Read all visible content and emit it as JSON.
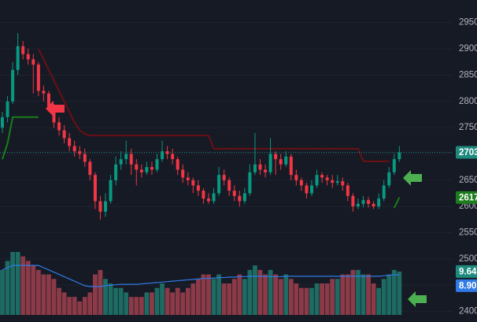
{
  "chart_data": {
    "type": "candlestick",
    "ylim": [
      2380,
      2993
    ],
    "yticks": [
      2400,
      2450,
      2500,
      2550,
      2600,
      2650,
      2700,
      2750,
      2800,
      2850,
      2900,
      2950
    ],
    "grid": true,
    "up_color": "#089981",
    "down_color": "#f23645",
    "ohlc": [
      [
        2750,
        2780,
        2740,
        2770
      ],
      [
        2770,
        2810,
        2760,
        2800
      ],
      [
        2800,
        2875,
        2795,
        2860
      ],
      [
        2860,
        2930,
        2850,
        2905
      ],
      [
        2905,
        2915,
        2880,
        2890
      ],
      [
        2890,
        2900,
        2870,
        2880
      ],
      [
        2880,
        2890,
        2815,
        2870
      ],
      [
        2870,
        2875,
        2810,
        2820
      ],
      [
        2820,
        2830,
        2800,
        2815
      ],
      [
        2815,
        2820,
        2780,
        2790
      ],
      [
        2790,
        2795,
        2750,
        2760
      ],
      [
        2760,
        2770,
        2735,
        2745
      ],
      [
        2745,
        2755,
        2720,
        2730
      ],
      [
        2730,
        2740,
        2705,
        2715
      ],
      [
        2715,
        2725,
        2695,
        2705
      ],
      [
        2705,
        2715,
        2690,
        2700
      ],
      [
        2700,
        2710,
        2675,
        2685
      ],
      [
        2685,
        2690,
        2650,
        2660
      ],
      [
        2660,
        2665,
        2595,
        2610
      ],
      [
        2610,
        2620,
        2575,
        2590
      ],
      [
        2590,
        2625,
        2580,
        2610
      ],
      [
        2610,
        2660,
        2605,
        2650
      ],
      [
        2650,
        2695,
        2640,
        2680
      ],
      [
        2680,
        2705,
        2670,
        2690
      ],
      [
        2690,
        2725,
        2680,
        2700
      ],
      [
        2700,
        2710,
        2660,
        2680
      ],
      [
        2680,
        2690,
        2640,
        2670
      ],
      [
        2670,
        2680,
        2655,
        2665
      ],
      [
        2665,
        2685,
        2660,
        2675
      ],
      [
        2675,
        2685,
        2660,
        2670
      ],
      [
        2670,
        2700,
        2665,
        2690
      ],
      [
        2690,
        2725,
        2685,
        2705
      ],
      [
        2705,
        2715,
        2690,
        2700
      ],
      [
        2700,
        2710,
        2680,
        2690
      ],
      [
        2690,
        2695,
        2660,
        2670
      ],
      [
        2670,
        2680,
        2645,
        2655
      ],
      [
        2655,
        2665,
        2640,
        2650
      ],
      [
        2650,
        2655,
        2625,
        2640
      ],
      [
        2640,
        2650,
        2620,
        2630
      ],
      [
        2630,
        2635,
        2605,
        2615
      ],
      [
        2615,
        2625,
        2605,
        2610
      ],
      [
        2610,
        2635,
        2605,
        2625
      ],
      [
        2625,
        2675,
        2620,
        2660
      ],
      [
        2660,
        2670,
        2640,
        2650
      ],
      [
        2650,
        2655,
        2620,
        2630
      ],
      [
        2630,
        2640,
        2610,
        2620
      ],
      [
        2620,
        2630,
        2600,
        2610
      ],
      [
        2610,
        2635,
        2605,
        2625
      ],
      [
        2625,
        2680,
        2620,
        2665
      ],
      [
        2665,
        2740,
        2660,
        2680
      ],
      [
        2680,
        2690,
        2660,
        2670
      ],
      [
        2670,
        2680,
        2655,
        2665
      ],
      [
        2665,
        2730,
        2660,
        2700
      ],
      [
        2700,
        2705,
        2660,
        2690
      ],
      [
        2690,
        2700,
        2670,
        2680
      ],
      [
        2680,
        2705,
        2675,
        2695
      ],
      [
        2695,
        2700,
        2650,
        2660
      ],
      [
        2660,
        2670,
        2640,
        2650
      ],
      [
        2650,
        2655,
        2630,
        2640
      ],
      [
        2640,
        2645,
        2615,
        2625
      ],
      [
        2625,
        2650,
        2620,
        2640
      ],
      [
        2640,
        2670,
        2635,
        2660
      ],
      [
        2660,
        2665,
        2645,
        2655
      ],
      [
        2655,
        2660,
        2640,
        2650
      ],
      [
        2650,
        2660,
        2635,
        2645
      ],
      [
        2645,
        2660,
        2640,
        2648
      ],
      [
        2648,
        2655,
        2630,
        2640
      ],
      [
        2640,
        2645,
        2610,
        2620
      ],
      [
        2620,
        2625,
        2590,
        2600
      ],
      [
        2600,
        2615,
        2595,
        2605
      ],
      [
        2605,
        2620,
        2598,
        2612
      ],
      [
        2612,
        2618,
        2598,
        2605
      ],
      [
        2605,
        2610,
        2595,
        2600
      ],
      [
        2600,
        2625,
        2595,
        2615
      ],
      [
        2615,
        2650,
        2610,
        2640
      ],
      [
        2640,
        2675,
        2635,
        2665
      ],
      [
        2665,
        2700,
        2660,
        2690
      ],
      [
        2690,
        2715,
        2685,
        2703
      ]
    ],
    "supertrend_up": {
      "color": "#1b7d1b",
      "values": [
        2690,
        2720,
        2770,
        2770,
        2770,
        2770,
        2770,
        2770,
        null,
        null,
        null,
        null,
        null,
        null,
        null,
        null,
        null,
        null,
        null,
        null,
        null,
        null,
        null,
        null,
        null,
        null,
        null,
        null,
        null,
        null,
        null,
        null,
        null,
        null,
        null,
        null,
        null,
        null,
        null,
        null,
        null,
        null,
        null,
        null,
        null,
        null,
        null,
        null,
        null,
        null,
        null,
        null,
        null,
        null,
        null,
        null,
        null,
        null,
        null,
        null,
        null,
        null,
        null,
        null,
        null,
        null,
        null,
        null,
        null,
        null,
        null,
        null,
        null,
        null,
        null,
        null,
        2597,
        2617
      ]
    },
    "supertrend_down": {
      "color": "#6b1014",
      "values": [
        null,
        null,
        null,
        null,
        null,
        null,
        null,
        2900,
        2880,
        2860,
        2840,
        2820,
        2800,
        2780,
        2760,
        2745,
        2738,
        2735,
        2735,
        2735,
        2735,
        2735,
        2735,
        2735,
        2735,
        2735,
        2735,
        2735,
        2735,
        2735,
        2735,
        2735,
        2735,
        2735,
        2735,
        2735,
        2735,
        2735,
        2735,
        2735,
        2735,
        2710,
        2710,
        2710,
        2710,
        2710,
        2710,
        2710,
        2710,
        2710,
        2710,
        2710,
        2710,
        2710,
        2710,
        2710,
        2710,
        2710,
        2710,
        2710,
        2710,
        2710,
        2710,
        2710,
        2710,
        2710,
        2710,
        2710,
        2710,
        2710,
        2686,
        2686,
        2686,
        2686,
        2686,
        2686,
        null,
        null
      ]
    },
    "volume": {
      "lim": [
        0,
        14
      ],
      "up_color": "#1d6b63",
      "down_color": "#8c3a48",
      "values": [
        10,
        12,
        14,
        14,
        13,
        12,
        11,
        10,
        9,
        9,
        8,
        6,
        5,
        4,
        4,
        3,
        4,
        5,
        9,
        10,
        8,
        7,
        6,
        6,
        5,
        4,
        4,
        4,
        5,
        5,
        6,
        7,
        6,
        5,
        6,
        5,
        6,
        7,
        8,
        9,
        9,
        8,
        9,
        7,
        7,
        8,
        9,
        8,
        10,
        11,
        10,
        9,
        10,
        9,
        8,
        9,
        8,
        7,
        6,
        6,
        6,
        7,
        7,
        7,
        8,
        8,
        9,
        9,
        10,
        10,
        9,
        9,
        7,
        6,
        8,
        9,
        10,
        9.64
      ]
    },
    "volume_ma": {
      "color": "#2f7ae5",
      "last_label": "8.90",
      "values": [
        10,
        10.5,
        11,
        11,
        11,
        11,
        11,
        11,
        10.5,
        10,
        9.5,
        9,
        8.5,
        8,
        7.5,
        7,
        6.5,
        6.3,
        6.3,
        6.3,
        6.5,
        6.6,
        6.7,
        6.8,
        6.8,
        6.8,
        6.8,
        6.9,
        7,
        7.1,
        7.2,
        7.3,
        7.4,
        7.5,
        7.6,
        7.7,
        7.8,
        7.9,
        8,
        8.1,
        8.1,
        8.2,
        8.3,
        8.3,
        8.4,
        8.4,
        8.5,
        8.5,
        8.6,
        8.6,
        8.6,
        8.6,
        8.5,
        8.5,
        8.5,
        8.6,
        8.6,
        8.6,
        8.6,
        8.6,
        8.6,
        8.6,
        8.6,
        8.6,
        8.6,
        8.6,
        8.6,
        8.6,
        8.6,
        8.6,
        8.6,
        8.6,
        8.6,
        8.6,
        8.7,
        8.8,
        8.9,
        8.9
      ]
    }
  }
}
